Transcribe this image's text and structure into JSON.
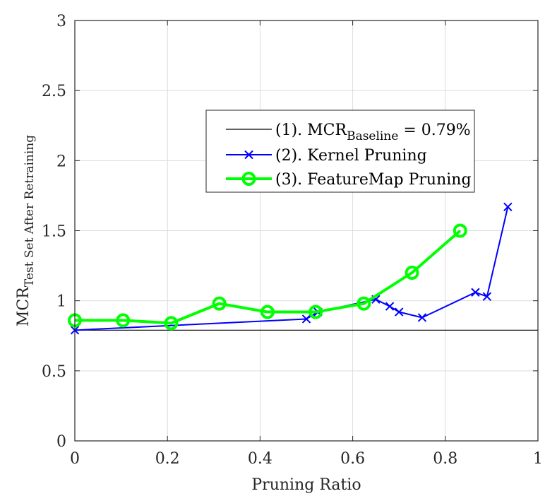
{
  "chart_data": {
    "type": "line",
    "xlabel": "Pruning Ratio",
    "ylabel_main": "MCR",
    "ylabel_sub": "Test Set After Retraining",
    "xlim": [
      0,
      1
    ],
    "ylim": [
      0,
      3
    ],
    "xticks": [
      0,
      0.2,
      0.4,
      0.6,
      0.8,
      1
    ],
    "yticks": [
      0,
      0.5,
      1,
      1.5,
      2,
      2.5,
      3
    ],
    "xtick_labels": [
      "0",
      "0.2",
      "0.4",
      "0.6",
      "0.8",
      "1"
    ],
    "ytick_labels": [
      "0",
      "0.5",
      "1",
      "1.5",
      "2",
      "2.5",
      "3"
    ],
    "grid": true,
    "legend_position": "upper-right-inside",
    "baseline": {
      "name": "(1). MCR_Baseline = 0.79%",
      "label_main": "(1). MCR",
      "label_sub": "Baseline",
      "label_tail": " = 0.79%",
      "value": 0.79,
      "color": "#000000"
    },
    "series": [
      {
        "name": "(2). Kernel Pruning",
        "label": "(2). Kernel Pruning",
        "color": "#0000ff",
        "marker": "x",
        "x": [
          0,
          0.5,
          0.525,
          0.65,
          0.68,
          0.7,
          0.75,
          0.865,
          0.89,
          0.935
        ],
        "y": [
          0.79,
          0.87,
          0.92,
          1.01,
          0.96,
          0.92,
          0.88,
          1.06,
          1.03,
          1.67
        ]
      },
      {
        "name": "(3). FeatureMap Pruning",
        "label": "(3). FeatureMap Pruning",
        "color": "#00ff00",
        "marker": "o",
        "x": [
          0,
          0.104,
          0.208,
          0.312,
          0.416,
          0.52,
          0.624,
          0.728,
          0.832
        ],
        "y": [
          0.86,
          0.86,
          0.84,
          0.98,
          0.92,
          0.92,
          0.98,
          1.2,
          1.5
        ]
      }
    ]
  }
}
